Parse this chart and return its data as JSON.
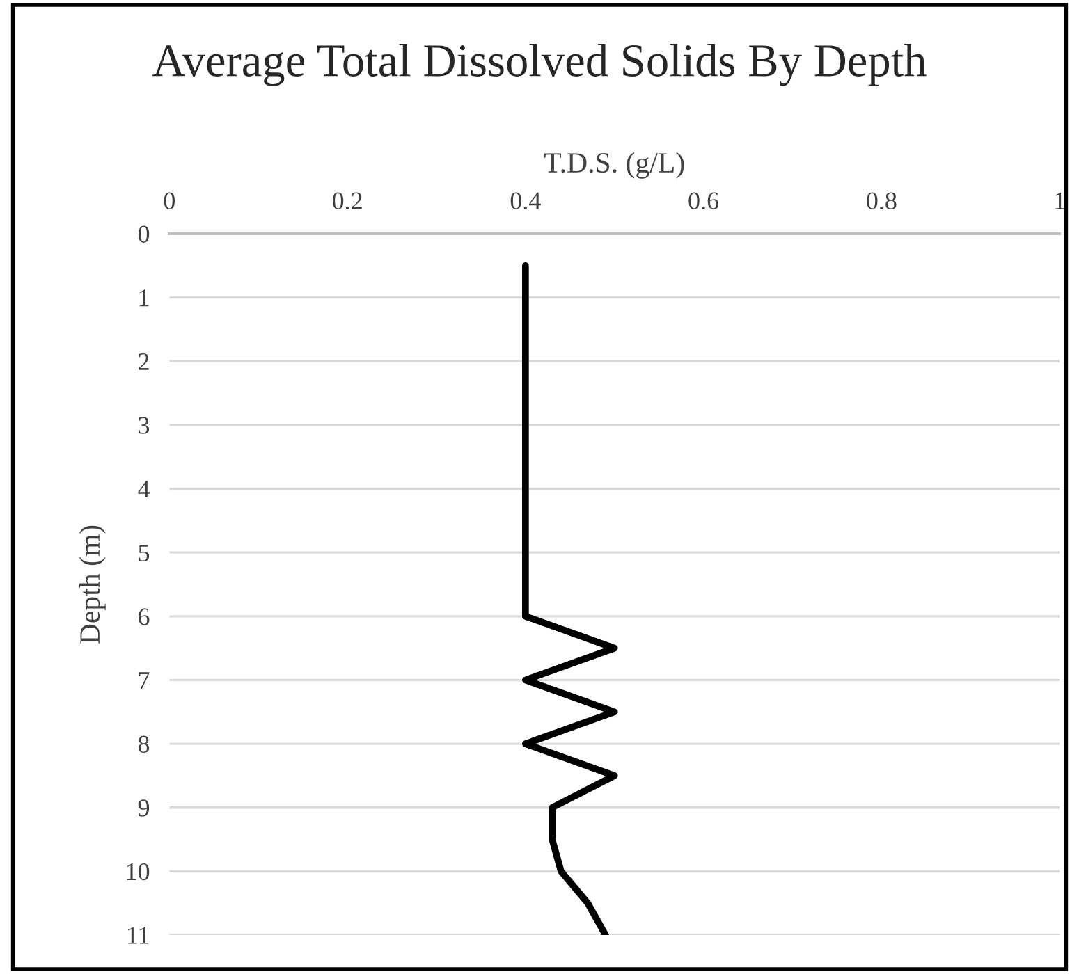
{
  "chart_data": {
    "type": "line",
    "title": "Average Total Dissolved Solids By Depth",
    "xlabel": "T.D.S. (g/L)",
    "ylabel": "Depth (m)",
    "series": [
      {
        "color": "#000000",
        "x": [
          0.4,
          0.4,
          0.4,
          0.4,
          0.4,
          0.4,
          0.4,
          0.4,
          0.4,
          0.4,
          0.4,
          0.4,
          0.5,
          0.4,
          0.5,
          0.4,
          0.5,
          0.43,
          0.43,
          0.44,
          0.47,
          0.49
        ],
        "values": [
          0.5,
          1,
          1.5,
          2,
          2.5,
          3,
          3.5,
          4,
          4.5,
          5,
          5.5,
          6,
          6.5,
          7,
          7.5,
          8,
          8.5,
          9,
          9.5,
          10,
          10.5,
          11
        ]
      }
    ],
    "xlim": [
      0,
      1
    ],
    "xticks": [
      0,
      0.2,
      0.4,
      0.6,
      0.8,
      1
    ],
    "ylim": [
      11,
      0
    ],
    "yticks": [
      0,
      1,
      2,
      3,
      4,
      5,
      6,
      7,
      8,
      9,
      10,
      11
    ],
    "grid": "y",
    "marker": "none",
    "line_style": "solid"
  }
}
